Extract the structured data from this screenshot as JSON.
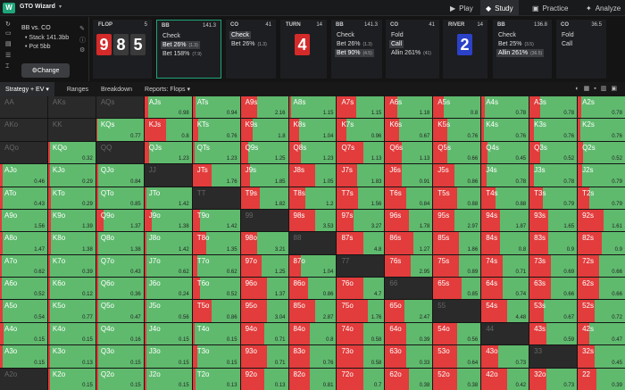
{
  "topbar": {
    "title": "GTO Wizard",
    "nav": [
      {
        "label": "Play",
        "icon": "play-icon"
      },
      {
        "label": "Study",
        "icon": "study-icon"
      },
      {
        "label": "Practice",
        "icon": "practice-icon"
      },
      {
        "label": "Analyze",
        "icon": "analyze-icon"
      }
    ]
  },
  "left": {
    "positions": "BB vs. CO",
    "stack": "Stack 141.3bb",
    "pot": "Pot 5bb",
    "change": "Change"
  },
  "flop": {
    "title": "FLOP",
    "num": "5",
    "cards": [
      "9",
      "8",
      "5"
    ]
  },
  "actions": [
    {
      "who": "BB",
      "amt": "141.3",
      "opts": [
        {
          "t": "Check",
          "sub": ""
        },
        {
          "t": "Bet 26%",
          "sub": "(1.3)"
        },
        {
          "t": "Bet 158%",
          "sub": "(7.9)"
        }
      ]
    },
    {
      "who": "CO",
      "amt": "41",
      "opts": [
        {
          "t": "Check",
          "sub": ""
        },
        {
          "t": "Bet 26%",
          "sub": "(1.3)"
        }
      ]
    },
    {
      "who": "TURN",
      "amt": "14",
      "card": "4"
    },
    {
      "who": "BB",
      "amt": "141.3",
      "opts": [
        {
          "t": "Check",
          "sub": ""
        },
        {
          "t": "Bet 26%",
          "sub": "(1.3)"
        },
        {
          "t": "Bet 90%",
          "sub": "(4.5)"
        }
      ]
    },
    {
      "who": "CO",
      "amt": "41",
      "opts": [
        {
          "t": "Fold",
          "sub": ""
        },
        {
          "t": "Call",
          "sub": ""
        },
        {
          "t": "Allin 261%",
          "sub": "(41)"
        }
      ]
    },
    {
      "who": "RIVER",
      "amt": "14",
      "card": "2"
    },
    {
      "who": "BB",
      "amt": "136.8",
      "opts": [
        {
          "t": "Check",
          "sub": ""
        },
        {
          "t": "Bet 25%",
          "sub": "(3.5)"
        },
        {
          "t": "Allin 261%",
          "sub": "(36.5)"
        }
      ]
    },
    {
      "who": "CO",
      "amt": "36.5",
      "opts": [
        {
          "t": "Fold",
          "sub": ""
        },
        {
          "t": "Call",
          "sub": ""
        }
      ]
    }
  ],
  "tabs": {
    "strategy": "Strategy + EV",
    "ranges": "Ranges",
    "breakdown": "Breakdown",
    "reports": "Reports: Flops"
  },
  "grid": {
    "rows": [
      [
        "AA",
        "AKs",
        "AQs",
        "AJs",
        "ATs",
        "A9s",
        "A8s",
        "A7s",
        "A6s",
        "A5s",
        "A4s",
        "A3s",
        "A2s"
      ],
      [
        "AKo",
        "KK",
        "KQs",
        "KJs",
        "KTs",
        "K9s",
        "K8s",
        "K7s",
        "K6s",
        "K5s",
        "K4s",
        "K3s",
        "K2s"
      ],
      [
        "AQo",
        "KQo",
        "QQ",
        "QJs",
        "QTs",
        "Q9s",
        "Q8s",
        "Q7s",
        "Q6s",
        "Q5s",
        "Q4s",
        "Q3s",
        "Q2s"
      ],
      [
        "AJo",
        "KJo",
        "QJo",
        "JJ",
        "JTs",
        "J9s",
        "J8s",
        "J7s",
        "J6s",
        "J5s",
        "J4s",
        "J3s",
        "J2s"
      ],
      [
        "ATo",
        "KTo",
        "QTo",
        "JTo",
        "TT",
        "T9s",
        "T8s",
        "T7s",
        "T6s",
        "T5s",
        "T4s",
        "T3s",
        "T2s"
      ],
      [
        "A9o",
        "K9o",
        "Q9o",
        "J9o",
        "T9o",
        "99",
        "98s",
        "97s",
        "96s",
        "95s",
        "94s",
        "93s",
        "92s"
      ],
      [
        "A8o",
        "K8o",
        "Q8o",
        "J8o",
        "T8o",
        "98o",
        "88",
        "87s",
        "86s",
        "85s",
        "84s",
        "83s",
        "82s"
      ],
      [
        "A7o",
        "K7o",
        "Q7o",
        "J7o",
        "T7o",
        "97o",
        "87o",
        "77",
        "76s",
        "75s",
        "74s",
        "73s",
        "72s"
      ],
      [
        "A6o",
        "K6o",
        "Q6o",
        "J6o",
        "T6o",
        "96o",
        "86o",
        "76o",
        "66",
        "65s",
        "64s",
        "63s",
        "62s"
      ],
      [
        "A5o",
        "K5o",
        "Q5o",
        "J5o",
        "T5o",
        "95o",
        "85o",
        "75o",
        "65o",
        "55",
        "54s",
        "53s",
        "52s"
      ],
      [
        "A4o",
        "K4o",
        "Q4o",
        "J4o",
        "T4o",
        "94o",
        "84o",
        "74o",
        "64o",
        "54o",
        "44",
        "43s",
        "42s"
      ],
      [
        "A3o",
        "K3o",
        "Q3o",
        "J3o",
        "T3o",
        "93o",
        "83o",
        "73o",
        "63o",
        "53o",
        "43o",
        "33",
        "32s"
      ],
      [
        "A2o",
        "K2o",
        "Q2o",
        "J2o",
        "T2o",
        "92o",
        "82o",
        "72o",
        "62o",
        "52o",
        "42o",
        "32o",
        "22"
      ]
    ],
    "ev": [
      [
        "",
        "",
        "",
        "0.98",
        "0.94",
        "2.16",
        "1.15",
        "1.15",
        "1.18",
        "0.8",
        "0.78",
        "0.78",
        "0.78"
      ],
      [
        "",
        "",
        "0.77",
        "0.8",
        "0.76",
        "1.8",
        "1.04",
        "0.96",
        "0.67",
        "0.76",
        "0.76",
        "0.76",
        "0.76"
      ],
      [
        "",
        "0.32",
        "",
        "1.23",
        "1.23",
        "1.25",
        "1.23",
        "1.13",
        "1.13",
        "0.66",
        "0.45",
        "0.52",
        "0.52"
      ],
      [
        "0.46",
        "0.29",
        "0.84",
        "",
        "1.76",
        "1.85",
        "1.05",
        "1.83",
        "0.91",
        "0.86",
        "0.78",
        "0.78",
        "0.79"
      ],
      [
        "0.43",
        "0.29",
        "0.85",
        "1.42",
        "",
        "1.82",
        "1.2",
        "1.56",
        "0.84",
        "0.88",
        "0.88",
        "0.79",
        "0.79"
      ],
      [
        "1.56",
        "1.39",
        "1.37",
        "1.38",
        "1.42",
        "",
        "3.53",
        "3.27",
        "1.78",
        "2.97",
        "1.87",
        "1.65",
        "1.61"
      ],
      [
        "1.47",
        "1.38",
        "1.38",
        "1.42",
        "1.35",
        "3.21",
        "",
        "4.8",
        "1.27",
        "1.86",
        "0.8",
        "0.9",
        "0.9"
      ],
      [
        "0.62",
        "0.39",
        "0.43",
        "0.62",
        "0.62",
        "1.25",
        "1.04",
        "",
        "2.95",
        "0.89",
        "0.71",
        "0.69",
        "0.66"
      ],
      [
        "0.52",
        "0.12",
        "0.36",
        "0.24",
        "0.52",
        "1.37",
        "0.86",
        "4.7",
        "",
        "0.85",
        "0.74",
        "0.66",
        "0.66"
      ],
      [
        "0.54",
        "0.77",
        "0.47",
        "0.56",
        "0.86",
        "3.04",
        "2.87",
        "1.76",
        "2.47",
        "",
        "4.48",
        "0.67",
        "0.72"
      ],
      [
        "0.15",
        "0.15",
        "0.16",
        "0.15",
        "0.15",
        "0.71",
        "0.8",
        "0.58",
        "0.39",
        "0.56",
        "",
        "0.59",
        "0.47"
      ],
      [
        "0.15",
        "0.13",
        "0.15",
        "0.15",
        "0.15",
        "0.71",
        "0.76",
        "0.58",
        "0.33",
        "0.64",
        "0.73",
        "",
        "0.45"
      ],
      [
        "",
        "0.15",
        "0.15",
        "0.15",
        "0.13",
        "0.13",
        "0.81",
        "0.7",
        "0.38",
        "0.38",
        "0.42",
        "0.73",
        "0.39"
      ]
    ],
    "bet": [
      [
        0,
        0,
        0,
        8,
        6,
        35,
        5,
        40,
        25,
        22,
        8,
        22,
        8
      ],
      [
        0,
        0,
        3,
        45,
        12,
        25,
        22,
        20,
        30,
        30,
        6,
        10,
        6
      ],
      [
        0,
        4,
        0,
        10,
        4,
        15,
        25,
        55,
        35,
        30,
        12,
        22,
        12
      ],
      [
        5,
        4,
        4,
        0,
        40,
        20,
        55,
        42,
        35,
        45,
        10,
        10,
        10
      ],
      [
        5,
        5,
        5,
        5,
        0,
        40,
        35,
        45,
        45,
        50,
        30,
        28,
        25
      ],
      [
        4,
        5,
        15,
        15,
        15,
        0,
        55,
        35,
        50,
        45,
        40,
        40,
        55
      ],
      [
        5,
        5,
        5,
        5,
        28,
        35,
        0,
        55,
        60,
        55,
        40,
        40,
        50
      ],
      [
        4,
        4,
        4,
        4,
        10,
        45,
        25,
        0,
        55,
        55,
        45,
        45,
        45
      ],
      [
        4,
        4,
        4,
        4,
        15,
        55,
        40,
        55,
        0,
        60,
        45,
        45,
        45
      ],
      [
        5,
        4,
        5,
        5,
        40,
        55,
        55,
        65,
        40,
        0,
        55,
        30,
        35
      ],
      [
        8,
        4,
        5,
        4,
        5,
        50,
        45,
        55,
        45,
        50,
        0,
        35,
        25
      ],
      [
        5,
        4,
        5,
        5,
        10,
        55,
        45,
        55,
        45,
        50,
        35,
        0,
        35
      ],
      [
        0,
        4,
        5,
        5,
        6,
        50,
        45,
        55,
        50,
        50,
        55,
        35,
        40
      ]
    ]
  }
}
